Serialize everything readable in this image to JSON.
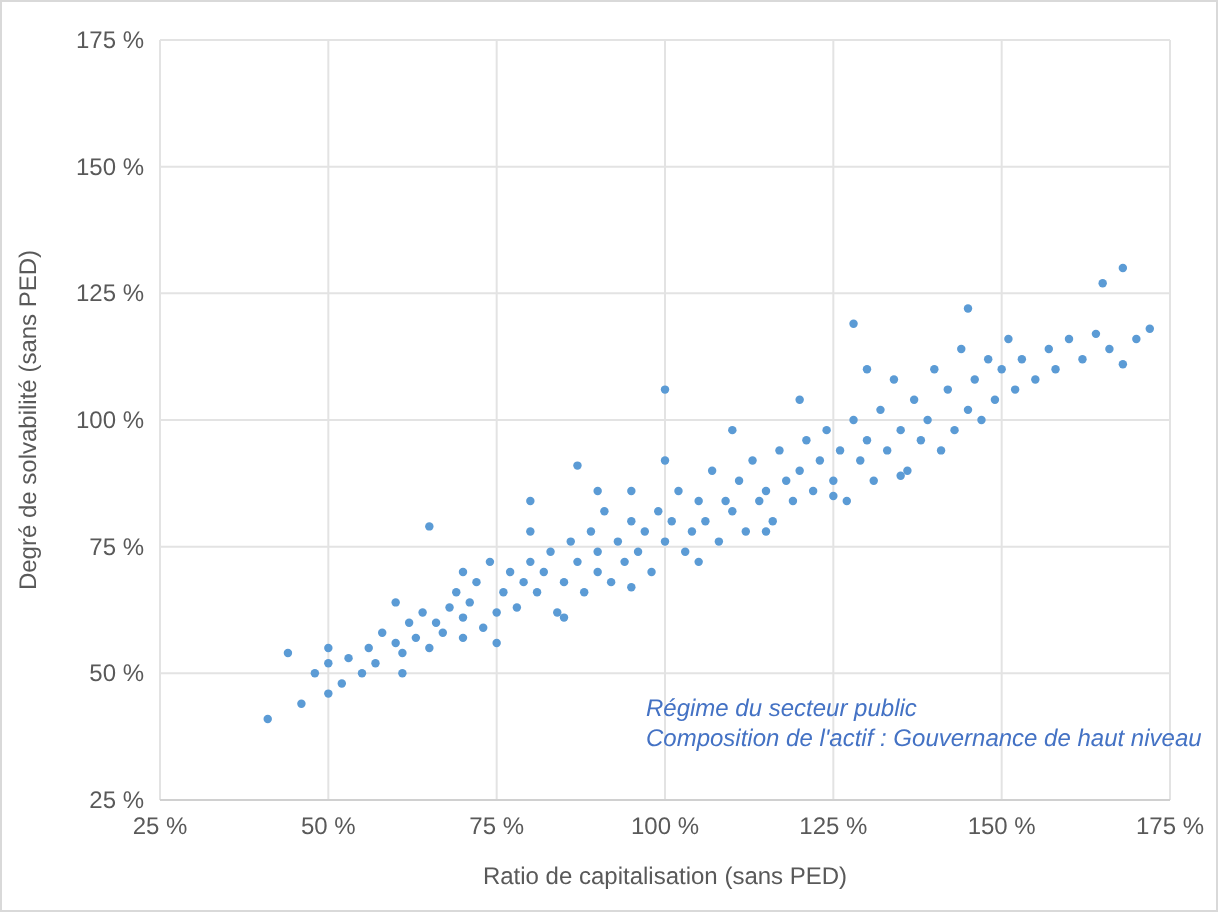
{
  "chart_data": {
    "type": "scatter",
    "xlabel": "Ratio de capitalisation (sans PED)",
    "ylabel": "Degré de solvabilité (sans PED)",
    "annotations": [
      "Régime du secteur public",
      "Composition de l'actif : Gouvernance de haut niveau"
    ],
    "xlim": [
      25,
      175
    ],
    "ylim": [
      25,
      175
    ],
    "xticks": [
      {
        "value": 25,
        "label": "25 %"
      },
      {
        "value": 50,
        "label": "50 %"
      },
      {
        "value": 75,
        "label": "75 %"
      },
      {
        "value": 100,
        "label": "100 %"
      },
      {
        "value": 125,
        "label": "125 %"
      },
      {
        "value": 150,
        "label": "150 %"
      },
      {
        "value": 175,
        "label": "175 %"
      }
    ],
    "yticks": [
      {
        "value": 25,
        "label": "25 %"
      },
      {
        "value": 50,
        "label": "50 %"
      },
      {
        "value": 75,
        "label": "75 %"
      },
      {
        "value": 100,
        "label": "100 %"
      },
      {
        "value": 125,
        "label": "125 %"
      },
      {
        "value": 150,
        "label": "150 %"
      },
      {
        "value": 175,
        "label": "175 %"
      }
    ],
    "grid": true,
    "marker": "circle",
    "series": [
      {
        "color": "#5b9bd5",
        "x": [
          41,
          44,
          46,
          48,
          50,
          50,
          52,
          53,
          55,
          56,
          57,
          58,
          60,
          61,
          62,
          63,
          64,
          65,
          65,
          66,
          67,
          68,
          69,
          70,
          70,
          71,
          72,
          73,
          74,
          75,
          76,
          77,
          78,
          79,
          80,
          80,
          81,
          82,
          83,
          84,
          85,
          86,
          87,
          87,
          88,
          89,
          90,
          90,
          91,
          92,
          93,
          94,
          95,
          95,
          96,
          97,
          98,
          99,
          100,
          100,
          101,
          102,
          103,
          104,
          105,
          106,
          107,
          108,
          109,
          110,
          111,
          112,
          113,
          114,
          115,
          116,
          117,
          118,
          119,
          120,
          121,
          122,
          123,
          124,
          125,
          126,
          127,
          128,
          128,
          129,
          130,
          131,
          132,
          133,
          134,
          135,
          136,
          137,
          138,
          139,
          140,
          141,
          142,
          143,
          144,
          145,
          145,
          146,
          147,
          148,
          149,
          150,
          151,
          152,
          153,
          155,
          157,
          158,
          160,
          162,
          164,
          165,
          168,
          166,
          168,
          170,
          172,
          61,
          75,
          85,
          95,
          105,
          115,
          125,
          135,
          50,
          60,
          70,
          80,
          90,
          100,
          110,
          120,
          130
        ],
        "values": [
          41,
          54,
          44,
          50,
          46,
          52,
          48,
          53,
          50,
          55,
          52,
          58,
          56,
          54,
          60,
          57,
          62,
          55,
          79,
          60,
          58,
          63,
          66,
          57,
          61,
          64,
          68,
          59,
          72,
          62,
          66,
          70,
          63,
          68,
          84,
          72,
          66,
          70,
          74,
          62,
          68,
          76,
          91,
          72,
          66,
          78,
          70,
          74,
          82,
          68,
          76,
          72,
          80,
          86,
          74,
          78,
          70,
          82,
          106,
          76,
          80,
          86,
          74,
          78,
          84,
          80,
          90,
          76,
          84,
          82,
          88,
          78,
          92,
          84,
          86,
          80,
          94,
          88,
          84,
          90,
          96,
          86,
          92,
          98,
          88,
          94,
          84,
          119,
          100,
          92,
          96,
          88,
          102,
          94,
          108,
          98,
          90,
          104,
          96,
          100,
          110,
          94,
          106,
          98,
          114,
          122,
          102,
          108,
          100,
          112,
          104,
          110,
          116,
          106,
          112,
          108,
          114,
          110,
          116,
          112,
          117,
          127,
          130,
          114,
          111,
          116,
          118,
          50,
          56,
          61,
          67,
          72,
          78,
          85,
          89,
          55,
          64,
          70,
          78,
          86,
          92,
          98,
          104,
          110
        ]
      }
    ]
  }
}
